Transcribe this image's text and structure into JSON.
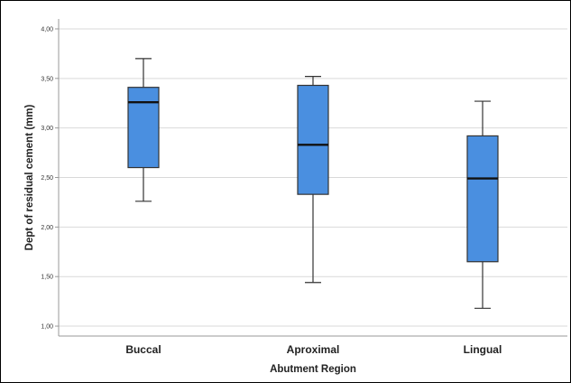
{
  "chart_data": {
    "type": "boxplot",
    "title": "",
    "xlabel": "Abutment Region",
    "ylabel": "Dept of residual cement (mm)",
    "ylim": [
      0.9,
      4.1
    ],
    "yticks": [
      "1,00",
      "1,50",
      "2,00",
      "2,50",
      "3,00",
      "3,50",
      "4,00"
    ],
    "ytick_values": [
      1.0,
      1.5,
      2.0,
      2.5,
      3.0,
      3.5,
      4.0
    ],
    "grid": true,
    "categories": [
      "Buccal",
      "Aproximal",
      "Lingual"
    ],
    "series": [
      {
        "category": "Buccal",
        "whisker_low": 2.26,
        "q1": 2.6,
        "median": 3.26,
        "q3": 3.41,
        "whisker_high": 3.7
      },
      {
        "category": "Aproximal",
        "whisker_low": 1.44,
        "q1": 2.33,
        "median": 2.83,
        "q3": 3.43,
        "whisker_high": 3.52
      },
      {
        "category": "Lingual",
        "whisker_low": 1.18,
        "q1": 1.65,
        "median": 2.49,
        "q3": 2.92,
        "whisker_high": 3.27
      }
    ],
    "box_color": "#4a8fe0",
    "box_edge_color": "#333333",
    "grid_color": "#d9d9d9"
  }
}
